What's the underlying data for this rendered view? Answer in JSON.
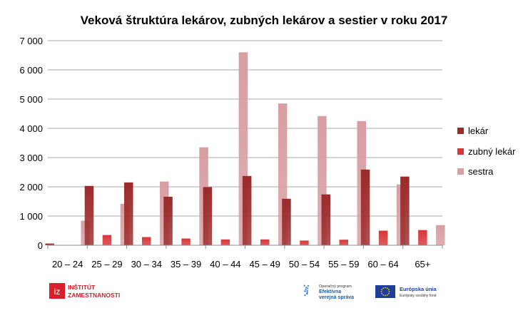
{
  "chart_data": {
    "type": "bar",
    "title": "Veková štruktúra lekárov, zubných lekárov a sestier v roku 2017",
    "categories": [
      "20 – 24",
      "25 – 29",
      "30 – 34",
      "35 – 39",
      "40 – 44",
      "45 – 49",
      "50 – 54",
      "55 – 59",
      "60 – 64",
      "65+"
    ],
    "series": [
      {
        "name": "lekár",
        "values": [
          60,
          2030,
          2150,
          1660,
          1990,
          2370,
          1590,
          1740,
          2590,
          2350
        ],
        "color": "#9c2a2a"
      },
      {
        "name": "zubný lekár",
        "values": [
          0,
          350,
          280,
          230,
          200,
          200,
          160,
          190,
          500,
          520
        ],
        "color": "#d8363a"
      },
      {
        "name": "sestra",
        "values": [
          840,
          1420,
          2180,
          3350,
          6600,
          4850,
          4420,
          4250,
          2080,
          690
        ],
        "color": "#d89ea2"
      }
    ],
    "ylim": [
      0,
      7000
    ],
    "yticks": [
      0,
      1000,
      2000,
      3000,
      4000,
      5000,
      6000,
      7000
    ],
    "ytick_labels": [
      "0",
      "1 000",
      "2 000",
      "3 000",
      "4 000",
      "5 000",
      "6 000",
      "7 000"
    ],
    "grid": true,
    "legend_position": "right",
    "xlabel": "",
    "ylabel": ""
  },
  "footer": {
    "iz_mark": "iz",
    "iz_line1": "INŠTITÚT",
    "iz_line2": "ZAMESTNANOSTI",
    "op_line1": "Operačný program",
    "op_line2": "Efektívna",
    "op_line3": "verejná správa",
    "eu_line1": "Európska únia",
    "eu_line2": "Európsky sociálny fond"
  }
}
